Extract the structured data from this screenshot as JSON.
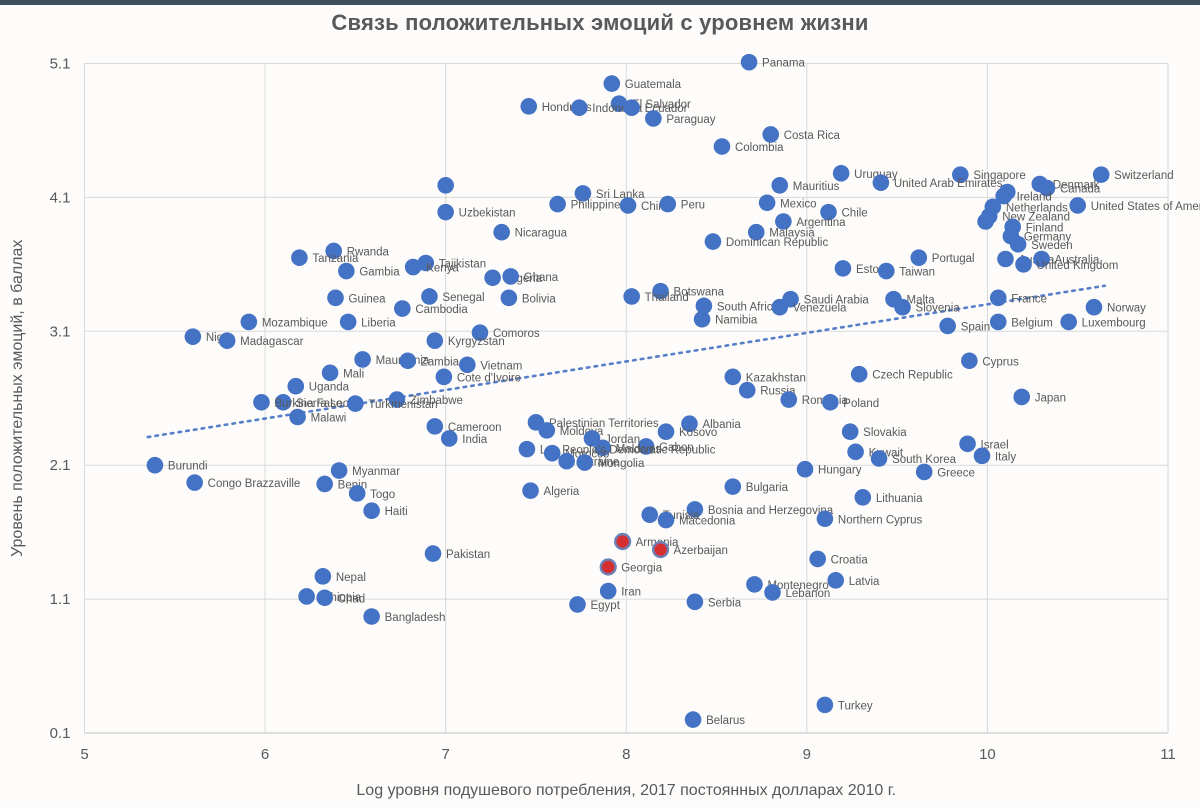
{
  "window": {
    "top_strip_color": "#3e4f5c",
    "background": "#fdfcfa"
  },
  "chart_data": {
    "type": "scatter",
    "title": "Связь положительных эмоций с уровнем жизни",
    "xlabel": "Log уровня подушевого потребления, 2017 постоянных долларах 2010 г.",
    "ylabel": "Уровень положительных эмоций, в баллах",
    "xlim": [
      5,
      11
    ],
    "ylim": [
      0.1,
      5.1
    ],
    "x_ticks": [
      5,
      6,
      7,
      8,
      9,
      10,
      11
    ],
    "y_ticks": [
      5.1,
      4.1,
      3.1,
      2.1,
      1.1,
      0.1
    ],
    "grid": true,
    "legend": "none",
    "colors": {
      "point": "#4472c4",
      "highlight": "#d62f2f",
      "highlight_ring": "#6b82b8",
      "gridline": "#d9d9d9",
      "axis_line": "#bfbfbf",
      "tick_text": "#595959",
      "label_text": "#595959",
      "trendline": "#4472c4"
    },
    "trendline": {
      "style": "dotted",
      "x1": 5.35,
      "y1": 2.31,
      "x2": 10.65,
      "y2": 3.44
    },
    "points": [
      {
        "label": "Panama",
        "x": 8.68,
        "y": 5.11
      },
      {
        "label": "Guatemala",
        "x": 7.92,
        "y": 4.95
      },
      {
        "label": "El Salvador",
        "x": 7.96,
        "y": 4.8
      },
      {
        "label": "Honduras",
        "x": 7.46,
        "y": 4.78
      },
      {
        "label": "Indonesia",
        "x": 7.74,
        "y": 4.77
      },
      {
        "label": "Ecuador",
        "x": 8.03,
        "y": 4.77
      },
      {
        "label": "Paraguay",
        "x": 8.15,
        "y": 4.69
      },
      {
        "label": "Costa Rica",
        "x": 8.8,
        "y": 4.57
      },
      {
        "label": "Colombia",
        "x": 8.53,
        "y": 4.48
      },
      {
        "label": "Uruguay",
        "x": 9.19,
        "y": 4.28
      },
      {
        "label": "Switzerland",
        "x": 10.63,
        "y": 4.27
      },
      {
        "label": "Singapore",
        "x": 9.85,
        "y": 4.27
      },
      {
        "label": "United Arab Emirates",
        "x": 9.41,
        "y": 4.21
      },
      {
        "label": "Denmark",
        "x": 10.29,
        "y": 4.2
      },
      {
        "label": "Mauritius",
        "x": 8.85,
        "y": 4.19
      },
      {
        "label": "Canada",
        "x": 10.33,
        "y": 4.17
      },
      {
        "label": "",
        "x": 7.0,
        "y": 4.19
      },
      {
        "label": "Sri Lanka",
        "x": 7.76,
        "y": 4.13
      },
      {
        "label": "Ireland",
        "x": 10.09,
        "y": 4.11
      },
      {
        "label": "Mexico",
        "x": 8.78,
        "y": 4.06
      },
      {
        "label": "Philippines",
        "x": 7.62,
        "y": 4.05
      },
      {
        "label": "China",
        "x": 8.01,
        "y": 4.04
      },
      {
        "label": "Peru",
        "x": 8.23,
        "y": 4.05
      },
      {
        "label": "United States of America",
        "x": 10.5,
        "y": 4.04
      },
      {
        "label": "Netherlands",
        "x": 10.03,
        "y": 4.03
      },
      {
        "label": "Uzbekistan",
        "x": 7.0,
        "y": 3.99
      },
      {
        "label": "Chile",
        "x": 9.12,
        "y": 3.99
      },
      {
        "label": "New Zealand",
        "x": 10.01,
        "y": 3.96
      },
      {
        "label": "",
        "x": 9.99,
        "y": 3.92
      },
      {
        "label": "",
        "x": 10.11,
        "y": 4.14
      },
      {
        "label": "Argentina",
        "x": 8.87,
        "y": 3.92
      },
      {
        "label": "Finland",
        "x": 10.14,
        "y": 3.88
      },
      {
        "label": "Nicaragua",
        "x": 7.31,
        "y": 3.84
      },
      {
        "label": "Malaysia",
        "x": 8.72,
        "y": 3.84
      },
      {
        "label": "Germany",
        "x": 10.13,
        "y": 3.81
      },
      {
        "label": "Dominican Republic",
        "x": 8.48,
        "y": 3.77
      },
      {
        "label": "Sweden",
        "x": 10.17,
        "y": 3.75
      },
      {
        "label": "Rwanda",
        "x": 6.38,
        "y": 3.7
      },
      {
        "label": "Tanzania",
        "x": 6.19,
        "y": 3.65
      },
      {
        "label": "Portugal",
        "x": 9.62,
        "y": 3.65
      },
      {
        "label": "Austria",
        "x": 10.1,
        "y": 3.64
      },
      {
        "label": "Australia",
        "x": 10.3,
        "y": 3.64
      },
      {
        "label": "Tajikistan",
        "x": 6.89,
        "y": 3.61
      },
      {
        "label": "United Kingdom",
        "x": 10.2,
        "y": 3.6
      },
      {
        "label": "Kenya",
        "x": 6.82,
        "y": 3.58
      },
      {
        "label": "Estonia",
        "x": 9.2,
        "y": 3.57
      },
      {
        "label": "Gambia",
        "x": 6.45,
        "y": 3.55
      },
      {
        "label": "Taiwan",
        "x": 9.44,
        "y": 3.55
      },
      {
        "label": "Nigeria",
        "x": 7.26,
        "y": 3.5
      },
      {
        "label": "Ghana",
        "x": 7.36,
        "y": 3.51
      },
      {
        "label": "Botswana",
        "x": 8.19,
        "y": 3.4
      },
      {
        "label": "Thailand",
        "x": 8.03,
        "y": 3.36
      },
      {
        "label": "Senegal",
        "x": 6.91,
        "y": 3.36
      },
      {
        "label": "Guinea",
        "x": 6.39,
        "y": 3.35
      },
      {
        "label": "Bolivia",
        "x": 7.35,
        "y": 3.35
      },
      {
        "label": "Saudi Arabia",
        "x": 8.91,
        "y": 3.34
      },
      {
        "label": "Malta",
        "x": 9.48,
        "y": 3.34
      },
      {
        "label": "France",
        "x": 10.06,
        "y": 3.35
      },
      {
        "label": "South Africa",
        "x": 8.43,
        "y": 3.29
      },
      {
        "label": "Venezuela",
        "x": 8.85,
        "y": 3.28
      },
      {
        "label": "Slovenia",
        "x": 9.53,
        "y": 3.28
      },
      {
        "label": "Norway",
        "x": 10.59,
        "y": 3.28
      },
      {
        "label": "Cambodia",
        "x": 6.76,
        "y": 3.27
      },
      {
        "label": "Namibia",
        "x": 8.42,
        "y": 3.19
      },
      {
        "label": "Liberia",
        "x": 6.46,
        "y": 3.17
      },
      {
        "label": "Mozambique",
        "x": 5.91,
        "y": 3.17
      },
      {
        "label": "Belgium",
        "x": 10.06,
        "y": 3.17
      },
      {
        "label": "Luxembourg",
        "x": 10.45,
        "y": 3.17
      },
      {
        "label": "Spain",
        "x": 9.78,
        "y": 3.14
      },
      {
        "label": "Comoros",
        "x": 7.19,
        "y": 3.09
      },
      {
        "label": "Niger",
        "x": 5.6,
        "y": 3.06
      },
      {
        "label": "Madagascar",
        "x": 5.79,
        "y": 3.03
      },
      {
        "label": "Kyrgyzstan",
        "x": 6.94,
        "y": 3.03
      },
      {
        "label": "Cyprus",
        "x": 9.9,
        "y": 2.88
      },
      {
        "label": "Mauritania",
        "x": 6.54,
        "y": 2.89
      },
      {
        "label": "Zambia",
        "x": 6.79,
        "y": 2.88
      },
      {
        "label": "Vietnam",
        "x": 7.12,
        "y": 2.85
      },
      {
        "label": "Mali",
        "x": 6.36,
        "y": 2.79
      },
      {
        "label": "Czech Republic",
        "x": 9.29,
        "y": 2.78
      },
      {
        "label": "Kazakhstan",
        "x": 8.59,
        "y": 2.76
      },
      {
        "label": "Cote d'Ivoire",
        "x": 6.99,
        "y": 2.76
      },
      {
        "label": "Uganda",
        "x": 6.17,
        "y": 2.69
      },
      {
        "label": "Russia",
        "x": 8.67,
        "y": 2.66
      },
      {
        "label": "Japan",
        "x": 10.19,
        "y": 2.61
      },
      {
        "label": "Romania",
        "x": 8.9,
        "y": 2.59
      },
      {
        "label": "Zimbabwe",
        "x": 6.73,
        "y": 2.59
      },
      {
        "label": "Sierra Leone",
        "x": 6.1,
        "y": 2.57
      },
      {
        "label": "Burkina Faso",
        "x": 5.98,
        "y": 2.57
      },
      {
        "label": "Poland",
        "x": 9.13,
        "y": 2.57
      },
      {
        "label": "Turkmenistan",
        "x": 6.5,
        "y": 2.56
      },
      {
        "label": "Malawi",
        "x": 6.18,
        "y": 2.46
      },
      {
        "label": "Palestinian Territories",
        "x": 7.5,
        "y": 2.42
      },
      {
        "label": "Albania",
        "x": 8.35,
        "y": 2.41
      },
      {
        "label": "Cameroon",
        "x": 6.94,
        "y": 2.39
      },
      {
        "label": "Moldova",
        "x": 7.56,
        "y": 2.36
      },
      {
        "label": "Kosovo",
        "x": 8.22,
        "y": 2.35
      },
      {
        "label": "Slovakia",
        "x": 9.24,
        "y": 2.35
      },
      {
        "label": "India",
        "x": 7.02,
        "y": 2.3
      },
      {
        "label": "Jordan",
        "x": 7.81,
        "y": 2.3
      },
      {
        "label": "Israel",
        "x": 9.89,
        "y": 2.26
      },
      {
        "label": "Gabon",
        "x": 8.11,
        "y": 2.24
      },
      {
        "label": "Maldives",
        "x": 7.87,
        "y": 2.23
      },
      {
        "label": "Lao People's Democratic Republic",
        "x": 7.45,
        "y": 2.22
      },
      {
        "label": "Kuwait",
        "x": 9.27,
        "y": 2.2
      },
      {
        "label": "Morocco",
        "x": 7.59,
        "y": 2.19
      },
      {
        "label": "Italy",
        "x": 9.97,
        "y": 2.17
      },
      {
        "label": "South Korea",
        "x": 9.4,
        "y": 2.15
      },
      {
        "label": "Ukraine",
        "x": 7.67,
        "y": 2.13
      },
      {
        "label": "Mongolia",
        "x": 7.77,
        "y": 2.12
      },
      {
        "label": "Burundi",
        "x": 5.39,
        "y": 2.1
      },
      {
        "label": "Hungary",
        "x": 8.99,
        "y": 2.07
      },
      {
        "label": "Myanmar",
        "x": 6.41,
        "y": 2.06
      },
      {
        "label": "Greece",
        "x": 9.65,
        "y": 2.05
      },
      {
        "label": "Congo Brazzaville",
        "x": 5.61,
        "y": 1.97
      },
      {
        "label": "Benin",
        "x": 6.33,
        "y": 1.96
      },
      {
        "label": "Bulgaria",
        "x": 8.59,
        "y": 1.94
      },
      {
        "label": "Algeria",
        "x": 7.47,
        "y": 1.91
      },
      {
        "label": "Togo",
        "x": 6.51,
        "y": 1.89
      },
      {
        "label": "Lithuania",
        "x": 9.31,
        "y": 1.86
      },
      {
        "label": "Bosnia and Herzegovina",
        "x": 8.38,
        "y": 1.77
      },
      {
        "label": "Haiti",
        "x": 6.59,
        "y": 1.76
      },
      {
        "label": "Tunisia",
        "x": 8.13,
        "y": 1.73
      },
      {
        "label": "Northern Cyprus",
        "x": 9.1,
        "y": 1.7
      },
      {
        "label": "Macedonia",
        "x": 8.22,
        "y": 1.69
      },
      {
        "label": "Armenia",
        "x": 7.98,
        "y": 1.53,
        "highlight": true
      },
      {
        "label": "Azerbaijan",
        "x": 8.19,
        "y": 1.47,
        "highlight": true
      },
      {
        "label": "Pakistan",
        "x": 6.93,
        "y": 1.44
      },
      {
        "label": "Croatia",
        "x": 9.06,
        "y": 1.4
      },
      {
        "label": "Georgia",
        "x": 7.9,
        "y": 1.34,
        "highlight": true
      },
      {
        "label": "Nepal",
        "x": 6.32,
        "y": 1.27
      },
      {
        "label": "Latvia",
        "x": 9.16,
        "y": 1.24
      },
      {
        "label": "Montenegro",
        "x": 8.71,
        "y": 1.21
      },
      {
        "label": "Iran",
        "x": 7.9,
        "y": 1.16
      },
      {
        "label": "Lebanon",
        "x": 8.81,
        "y": 1.15
      },
      {
        "label": "Ethiopia",
        "x": 6.23,
        "y": 1.12
      },
      {
        "label": "Chad",
        "x": 6.33,
        "y": 1.11
      },
      {
        "label": "Serbia",
        "x": 8.38,
        "y": 1.08
      },
      {
        "label": "Egypt",
        "x": 7.73,
        "y": 1.06
      },
      {
        "label": "Bangladesh",
        "x": 6.59,
        "y": 0.97
      },
      {
        "label": "Turkey",
        "x": 9.1,
        "y": 0.31
      },
      {
        "label": "Belarus",
        "x": 8.37,
        "y": 0.2
      }
    ]
  }
}
